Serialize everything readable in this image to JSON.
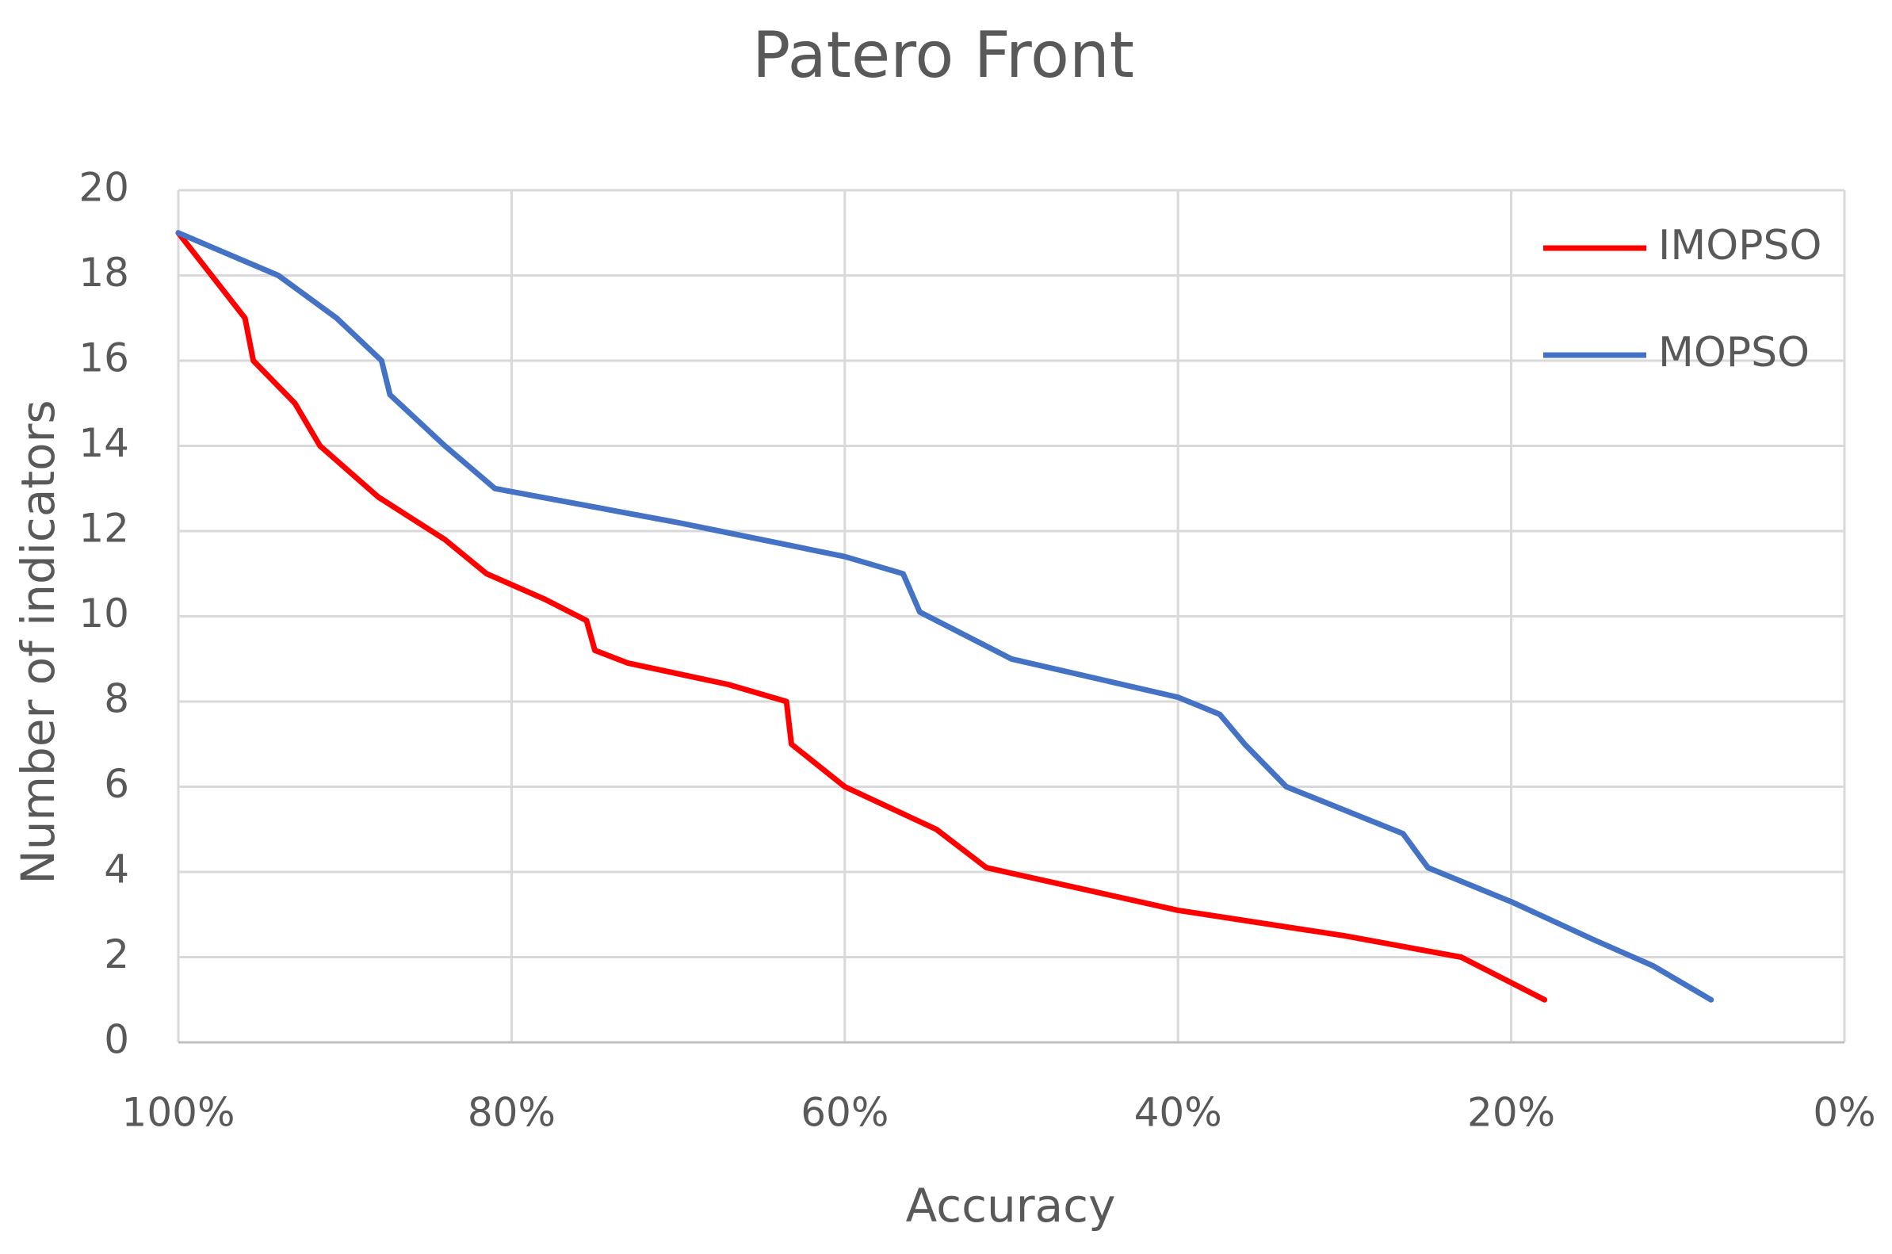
{
  "chart_data": {
    "type": "line",
    "title": "Patero Front",
    "x_label": "Accuracy",
    "y_label": "Number of indicators",
    "xlim": [
      100,
      0
    ],
    "ylim": [
      0,
      20
    ],
    "xticks": [
      {
        "value": 100,
        "label": "100%"
      },
      {
        "value": 80,
        "label": "80%"
      },
      {
        "value": 60,
        "label": "60%"
      },
      {
        "value": 40,
        "label": "40%"
      },
      {
        "value": 20,
        "label": "20%"
      },
      {
        "value": 0,
        "label": "0%"
      }
    ],
    "yticks": [
      0,
      2,
      4,
      6,
      8,
      10,
      12,
      14,
      16,
      18,
      20
    ],
    "grid": true,
    "legend": "upper right",
    "series": [
      {
        "name": "IMOPSO",
        "color": "#ff0000",
        "x": [
          100,
          96,
          95.5,
          93,
          91.5,
          88,
          84,
          81.5,
          78,
          75.5,
          75,
          73,
          67,
          63.5,
          63.2,
          60,
          54.5,
          51.5,
          40,
          30,
          23,
          20.5,
          18
        ],
        "values": [
          19,
          17,
          16,
          15,
          14,
          12.8,
          11.8,
          11,
          10.4,
          9.9,
          9.2,
          8.9,
          8.4,
          8,
          7,
          6,
          5,
          4.1,
          3.1,
          2.5,
          2,
          1.5,
          1
        ]
      },
      {
        "name": "MOPSO",
        "color": "#4472c4",
        "x": [
          100,
          94,
          90.5,
          87.8,
          87.3,
          84,
          81,
          70,
          60,
          56.5,
          55.5,
          50,
          40,
          37.5,
          36,
          33.5,
          26.5,
          25,
          20,
          15,
          11.5,
          8
        ],
        "values": [
          19,
          18,
          17,
          16,
          15.2,
          14,
          13,
          12.2,
          11.4,
          11,
          10.1,
          9,
          8.1,
          7.7,
          7,
          6,
          4.9,
          4.1,
          3.3,
          2.4,
          1.8,
          1
        ]
      }
    ]
  }
}
